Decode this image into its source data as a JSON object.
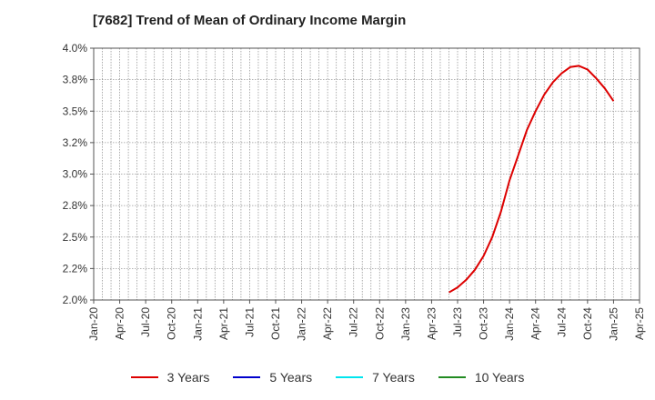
{
  "chart_data": {
    "type": "line",
    "title": "[7682]  Trend of Mean of Ordinary Income Margin",
    "xlabel": "",
    "ylabel": "",
    "x_ticks": [
      "Jan-20",
      "Apr-20",
      "Jul-20",
      "Oct-20",
      "Jan-21",
      "Apr-21",
      "Jul-21",
      "Oct-21",
      "Jan-22",
      "Apr-22",
      "Jul-22",
      "Oct-22",
      "Jan-23",
      "Apr-23",
      "Jul-23",
      "Oct-23",
      "Jan-24",
      "Apr-24",
      "Jul-24",
      "Oct-24",
      "Jan-25",
      "Apr-25"
    ],
    "y_ticks": [
      "2.0%",
      "2.2%",
      "2.5%",
      "2.8%",
      "3.0%",
      "3.2%",
      "3.5%",
      "3.8%",
      "4.0%"
    ],
    "ylim": [
      2.0,
      4.0
    ],
    "grid": true,
    "legend_position": "bottom",
    "series": [
      {
        "name": "3 Years",
        "color": "#dd0000",
        "x": [
          "Jun-23",
          "Jul-23",
          "Aug-23",
          "Sep-23",
          "Oct-23",
          "Nov-23",
          "Dec-23",
          "Jan-24",
          "Feb-24",
          "Mar-24",
          "Apr-24",
          "May-24",
          "Jun-24",
          "Jul-24",
          "Aug-24",
          "Sep-24",
          "Oct-24",
          "Nov-24",
          "Dec-24",
          "Jan-25"
        ],
        "values": [
          2.06,
          2.1,
          2.16,
          2.24,
          2.35,
          2.5,
          2.7,
          2.95,
          3.15,
          3.35,
          3.5,
          3.63,
          3.73,
          3.8,
          3.85,
          3.86,
          3.83,
          3.76,
          3.68,
          3.58
        ]
      },
      {
        "name": "5 Years",
        "color": "#0000cc",
        "x": [],
        "values": []
      },
      {
        "name": "7 Years",
        "color": "#00e5ee",
        "x": [],
        "values": []
      },
      {
        "name": "10 Years",
        "color": "#228b22",
        "x": [],
        "values": []
      }
    ]
  }
}
